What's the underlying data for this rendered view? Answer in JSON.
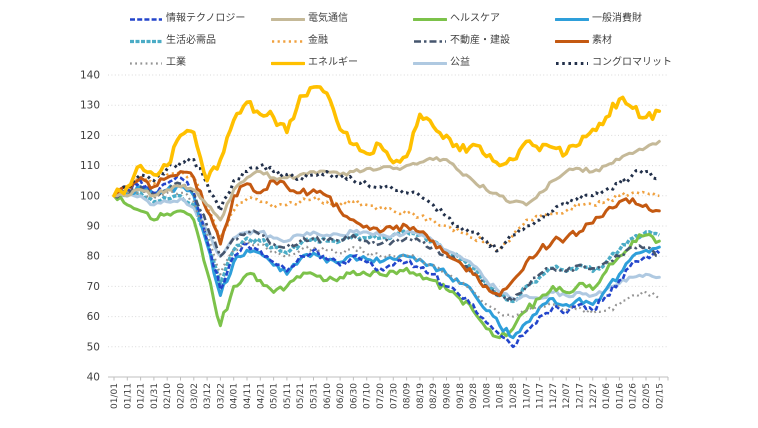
{
  "canvas": {
    "background": "#FFFFFF",
    "grid_color": "#DADADA",
    "axis_color": "#BFBFBF",
    "label_color": "#404040",
    "legend_text_color": "#3F3F3F"
  },
  "chart_data": {
    "type": "line",
    "title": "",
    "xlabel": "",
    "ylabel": "",
    "ylim": [
      40,
      140
    ],
    "ystep": 10,
    "grid": "horizontal-dotted",
    "legend_position": "top",
    "x_labels": [
      "01/01",
      "01/11",
      "01/21",
      "01/31",
      "02/10",
      "02/20",
      "03/02",
      "03/12",
      "03/22",
      "04/01",
      "04/11",
      "04/21",
      "05/01",
      "05/11",
      "05/21",
      "05/31",
      "06/10",
      "06/20",
      "06/30",
      "07/10",
      "07/20",
      "07/30",
      "08/09",
      "08/19",
      "08/29",
      "09/08",
      "09/18",
      "09/28",
      "10/08",
      "10/18",
      "10/28",
      "11/07",
      "11/17",
      "11/27",
      "12/07",
      "12/17",
      "12/27",
      "01/06",
      "01/16",
      "01/26",
      "02/05",
      "02/15"
    ],
    "series": [
      {
        "key": "tech",
        "name": "情報テクノロジー",
        "color": "#2345CB",
        "style": "dashed",
        "dash": "5 2.2",
        "width": 2.6,
        "cap": "butt",
        "noise": 1.3,
        "values": [
          100,
          102,
          105,
          101,
          104,
          106,
          101,
          85,
          69,
          80,
          84,
          82,
          78,
          75,
          80,
          82,
          79,
          77,
          80,
          78,
          76,
          77,
          78,
          76,
          74,
          70,
          67,
          64,
          58,
          54,
          50,
          55,
          60,
          63,
          61,
          64,
          62,
          67,
          72,
          78,
          80,
          81
        ]
      },
      {
        "key": "telecom",
        "name": "電気通信",
        "color": "#C5B998",
        "style": "solid",
        "dash": "",
        "width": 3,
        "cap": "round",
        "noise": 0.8,
        "values": [
          100,
          100,
          102,
          100,
          102,
          103,
          102,
          97,
          92,
          102,
          106,
          108,
          106,
          106,
          107,
          108,
          108,
          107,
          108,
          109,
          109,
          109,
          110,
          111,
          112,
          112,
          108,
          105,
          102,
          100,
          98,
          97,
          101,
          105,
          108,
          109,
          108,
          110,
          112,
          114,
          116,
          118
        ]
      },
      {
        "key": "health",
        "name": "ヘルスケア",
        "color": "#7CC24A",
        "style": "solid",
        "dash": "",
        "width": 3,
        "cap": "round",
        "noise": 1.2,
        "values": [
          100,
          97,
          95,
          92,
          94,
          95,
          92,
          75,
          57,
          70,
          74,
          72,
          68,
          70,
          73,
          74,
          72,
          73,
          75,
          74,
          74,
          75,
          76,
          74,
          72,
          69,
          66,
          62,
          56,
          53,
          56,
          62,
          66,
          70,
          68,
          71,
          69,
          75,
          80,
          85,
          87,
          85
        ]
      },
      {
        "key": "consumer",
        "name": "一般消費財",
        "color": "#2E9FDA",
        "style": "solid",
        "dash": "",
        "width": 3,
        "cap": "round",
        "noise": 1.2,
        "values": [
          100,
          101,
          103,
          100,
          102,
          103,
          100,
          84,
          67,
          78,
          82,
          81,
          77,
          74,
          79,
          81,
          78,
          78,
          80,
          79,
          78,
          79,
          80,
          79,
          77,
          74,
          71,
          68,
          62,
          57,
          53,
          58,
          63,
          66,
          64,
          66,
          64,
          69,
          74,
          80,
          82,
          83
        ]
      },
      {
        "key": "staples",
        "name": "生活必需品",
        "color": "#4BACC6",
        "style": "textured",
        "dash": "4 1.5",
        "width": 3.4,
        "cap": "butt",
        "noise": 1.0,
        "values": [
          100,
          100,
          101,
          98,
          99,
          100,
          97,
          85,
          71,
          82,
          86,
          85,
          83,
          81,
          84,
          86,
          85,
          85,
          87,
          86,
          86,
          87,
          88,
          87,
          85,
          82,
          79,
          76,
          71,
          67,
          65,
          70,
          73,
          76,
          75,
          77,
          75,
          78,
          82,
          86,
          88,
          87
        ]
      },
      {
        "key": "financials",
        "name": "金融",
        "color": "#F0A13F",
        "style": "dotted",
        "dash": "2.2 3.4",
        "width": 2.6,
        "cap": "butt",
        "noise": 1.0,
        "values": [
          100,
          103,
          106,
          104,
          107,
          108,
          106,
          96,
          86,
          95,
          99,
          98,
          96,
          97,
          98,
          99,
          98,
          97,
          98,
          97,
          96,
          95,
          94,
          93,
          92,
          90,
          88,
          86,
          85,
          82,
          87,
          92,
          93,
          94,
          95,
          97,
          97,
          98,
          100,
          101,
          101,
          100
        ]
      },
      {
        "key": "realestate",
        "name": "不動産・建設",
        "color": "#46566E",
        "style": "dash-dot",
        "dash": "7 3 2.5 3",
        "width": 2.6,
        "cap": "butt",
        "noise": 1.0,
        "values": [
          100,
          101,
          103,
          100,
          102,
          104,
          101,
          90,
          80,
          86,
          88,
          87,
          84,
          83,
          85,
          86,
          85,
          85,
          87,
          85,
          84,
          85,
          86,
          85,
          83,
          80,
          78,
          75,
          70,
          67,
          65,
          70,
          74,
          76,
          75,
          77,
          76,
          78,
          80,
          83,
          83,
          80
        ]
      },
      {
        "key": "materials",
        "name": "素材",
        "color": "#C45911",
        "style": "solid",
        "dash": "",
        "width": 3,
        "cap": "round",
        "noise": 1.3,
        "values": [
          100,
          103,
          106,
          103,
          106,
          108,
          106,
          95,
          84,
          100,
          104,
          101,
          105,
          103,
          101,
          102,
          100,
          95,
          92,
          90,
          88,
          89,
          90,
          88,
          85,
          81,
          78,
          74,
          70,
          67,
          72,
          78,
          82,
          85,
          86,
          88,
          91,
          95,
          98,
          99,
          97,
          95
        ]
      },
      {
        "key": "industrials",
        "name": "工業",
        "color": "#939393",
        "style": "dotted",
        "dash": "1.8 3.4",
        "width": 2.2,
        "cap": "butt",
        "noise": 0.9,
        "values": [
          100,
          101,
          102,
          99,
          101,
          101,
          98,
          87,
          74,
          82,
          85,
          84,
          81,
          80,
          82,
          83,
          82,
          81,
          83,
          81,
          80,
          80,
          80,
          79,
          77,
          74,
          71,
          68,
          64,
          61,
          60,
          62,
          63,
          64,
          62,
          63,
          61,
          62,
          64,
          67,
          68,
          66
        ]
      },
      {
        "key": "energy",
        "name": "エネルギー",
        "color": "#FFC000",
        "style": "solid",
        "dash": "",
        "width": 3.6,
        "cap": "round",
        "noise": 1.7,
        "values": [
          100,
          103,
          110,
          107,
          110,
          120,
          121,
          105,
          112,
          125,
          131,
          127,
          126,
          121,
          133,
          136,
          134,
          122,
          117,
          114,
          117,
          111,
          113,
          127,
          123,
          120,
          115,
          117,
          113,
          110,
          112,
          118,
          115,
          116,
          114,
          117,
          122,
          126,
          132,
          129,
          126,
          128
        ]
      },
      {
        "key": "utilities",
        "name": "公益",
        "color": "#AFC9E1",
        "style": "solid",
        "dash": "",
        "width": 3,
        "cap": "round",
        "noise": 0.8,
        "values": [
          100,
          100,
          100,
          97,
          98,
          99,
          96,
          88,
          80,
          86,
          88,
          88,
          86,
          85,
          87,
          88,
          87,
          87,
          88,
          88,
          87,
          87,
          88,
          87,
          85,
          82,
          80,
          77,
          72,
          68,
          66,
          67,
          66,
          68,
          67,
          68,
          67,
          69,
          71,
          73,
          74,
          73
        ]
      },
      {
        "key": "conglomerate",
        "name": "コングロマリット",
        "color": "#22304A",
        "style": "dotted",
        "dash": "2.6 3.6",
        "width": 3,
        "cap": "butt",
        "noise": 1.2,
        "values": [
          100,
          103,
          107,
          105,
          109,
          111,
          112,
          104,
          95,
          105,
          108,
          110,
          108,
          107,
          106,
          107,
          108,
          106,
          105,
          104,
          103,
          102,
          101,
          100,
          97,
          93,
          90,
          88,
          85,
          82,
          87,
          90,
          92,
          95,
          97,
          100,
          100,
          102,
          104,
          107,
          108,
          106
        ]
      }
    ],
    "z_order": [
      "staples",
      "utilities",
      "health",
      "consumer",
      "tech",
      "realestate",
      "industrials",
      "financials",
      "materials",
      "telecom",
      "conglomerate",
      "energy"
    ]
  }
}
